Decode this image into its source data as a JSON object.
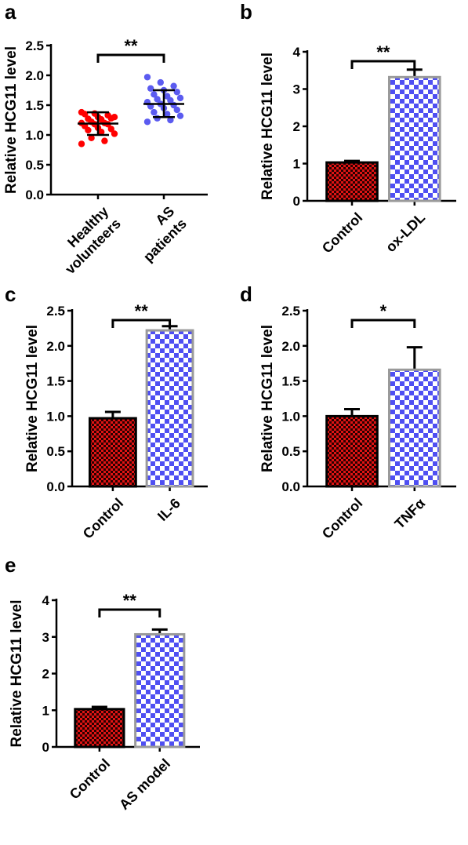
{
  "chart_data": [
    {
      "panel": "a",
      "type": "scatter",
      "ylabel": "Relative HCG11 level",
      "ylim": [
        0,
        2.5
      ],
      "yticks": [
        "0.0",
        "0.5",
        "1.0",
        "1.5",
        "2.0",
        "2.5"
      ],
      "categories": [
        [
          "Healthy",
          "volunteers"
        ],
        [
          "AS",
          "patients"
        ]
      ],
      "significance": "**",
      "colors": [
        "#ff0000",
        "#5b5bf0"
      ],
      "series": [
        {
          "values": [
            1.38,
            1.36,
            1.33,
            1.35,
            1.3,
            1.28,
            1.27,
            1.26,
            1.3,
            1.22,
            1.2,
            1.2,
            1.18,
            1.18,
            1.15,
            1.12,
            1.1,
            1.08,
            1.05,
            1.02,
            0.95,
            0.9,
            0.85
          ],
          "mean": 1.19,
          "sd_low": 1.0,
          "sd_high": 1.38
        },
        {
          "values": [
            1.97,
            1.88,
            1.82,
            1.78,
            1.75,
            1.72,
            1.68,
            1.65,
            1.62,
            1.6,
            1.58,
            1.55,
            1.52,
            1.5,
            1.48,
            1.45,
            1.42,
            1.38,
            1.35,
            1.32,
            1.28,
            1.25,
            1.22
          ],
          "mean": 1.52,
          "sd_low": 1.3,
          "sd_high": 1.75
        }
      ]
    },
    {
      "panel": "b",
      "type": "bar",
      "ylabel": "Relative HCG11 level",
      "ylim": [
        0,
        4
      ],
      "yticks": [
        "0",
        "1",
        "2",
        "3",
        "4"
      ],
      "categories": [
        [
          "Control"
        ],
        [
          "ox-LDL"
        ]
      ],
      "significance": "**",
      "values": [
        1.03,
        3.32
      ],
      "errors": [
        0.04,
        0.2
      ]
    },
    {
      "panel": "c",
      "type": "bar",
      "ylabel": "Relative HCG11 level",
      "ylim": [
        0,
        2.5
      ],
      "yticks": [
        "0.0",
        "0.5",
        "1.0",
        "1.5",
        "2.0",
        "2.5"
      ],
      "categories": [
        [
          "Control"
        ],
        [
          "IL-6"
        ]
      ],
      "significance": "**",
      "values": [
        0.97,
        2.22
      ],
      "errors": [
        0.09,
        0.06
      ]
    },
    {
      "panel": "d",
      "type": "bar",
      "ylabel": "Relative HCG11 level",
      "ylim": [
        0,
        2.5
      ],
      "yticks": [
        "0.0",
        "0.5",
        "1.0",
        "1.5",
        "2.0",
        "2.5"
      ],
      "categories": [
        [
          "Control"
        ],
        [
          "TNFα"
        ]
      ],
      "significance": "*",
      "values": [
        1.0,
        1.66
      ],
      "errors": [
        0.1,
        0.32
      ]
    },
    {
      "panel": "e",
      "type": "bar",
      "ylabel": "Relative HCG11 level",
      "ylim": [
        0,
        4
      ],
      "yticks": [
        "0",
        "1",
        "2",
        "3",
        "4"
      ],
      "categories": [
        [
          "Control"
        ],
        [
          "AS model"
        ]
      ],
      "significance": "**",
      "values": [
        1.03,
        3.07
      ],
      "errors": [
        0.06,
        0.13
      ]
    }
  ]
}
